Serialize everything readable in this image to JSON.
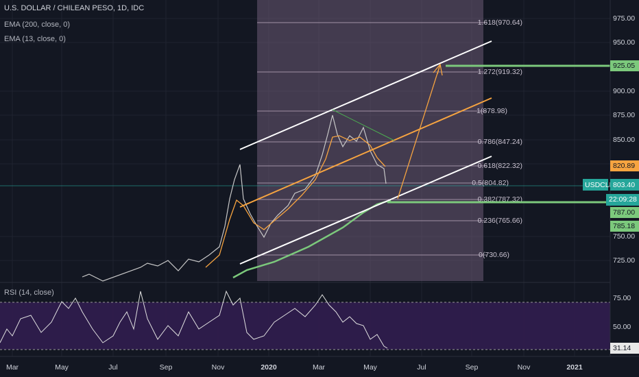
{
  "header": {
    "symbol": "U.S. DOLLAR / CHILEAN PESO, 1D, IDC",
    "indicators": [
      "EMA (200, close, 0)",
      "EMA (13, close, 0)"
    ]
  },
  "price_axis": [
    "975.00",
    "950.00",
    "900.00",
    "875.00",
    "850.00",
    "750.00",
    "725.00"
  ],
  "fib_levels": [
    "1.618(970.64)",
    "1.272(919.32)",
    "1(878.98)",
    "0.786(847.24)",
    "0.618(822.32)",
    "0.5(804.82)",
    "0.382(787.32)",
    "0.236(765.66)",
    "0(730.66)"
  ],
  "price_labels": {
    "target": "925.05",
    "ema13": "820.89",
    "symbol": "USDCLP",
    "last": "803.40",
    "countdown": "22:09:28",
    "support": "787.00",
    "ema200": "785.18"
  },
  "rsi": {
    "title": "RSI (14, close)",
    "axis": [
      "75.00",
      "50.00"
    ],
    "last": "31.14"
  },
  "time_axis": [
    "Mar",
    "May",
    "Jul",
    "Sep",
    "Nov",
    "2020",
    "Mar",
    "May",
    "Jul",
    "Sep",
    "Nov",
    "2021"
  ]
}
